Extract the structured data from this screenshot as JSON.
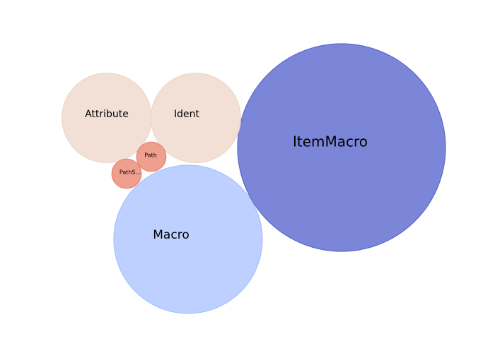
{
  "chart_data": {
    "type": "bubble",
    "title": "",
    "xlabel": "",
    "ylabel": "",
    "grid": false,
    "legend": "none",
    "bubbles": [
      {
        "label": "ItemMacro",
        "value": 100,
        "color": "#7b86d9",
        "stroke": "#5c68cc"
      },
      {
        "label": "Macro",
        "value": 51,
        "color": "#bdd0ff",
        "stroke": "#a8c0fa"
      },
      {
        "label": "Attribute",
        "value": 18.6,
        "color": "#f2e0d6",
        "stroke": "#eed6c8"
      },
      {
        "label": "Ident",
        "value": 18.6,
        "color": "#f2e0d6",
        "stroke": "#eed6c8"
      },
      {
        "label": "Path",
        "value": 2,
        "color": "#ef9f8e",
        "stroke": "#e6826e"
      },
      {
        "label": "PathS...",
        "value": 2,
        "color": "#ef9f8e",
        "stroke": "#e6826e"
      }
    ]
  }
}
